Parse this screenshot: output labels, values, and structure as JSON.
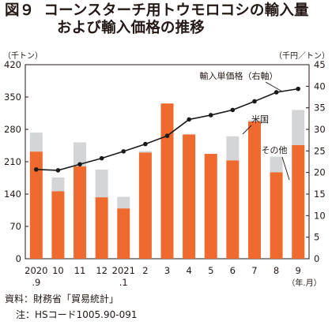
{
  "figure": {
    "number": "図９",
    "title_line1": "コーンスターチ用トウモロコシの輸入量",
    "title_line2": "および輸入価格の推移"
  },
  "chart_data": {
    "type": "bar",
    "stacked": true,
    "categories": [
      "2020\n.9",
      "10",
      "11",
      "12",
      "2021\n.1",
      "2",
      "3",
      "4",
      "5",
      "6",
      "7",
      "8",
      "9"
    ],
    "x_unit_label": "（年.月）",
    "left_axis": {
      "unit": "（千トン）",
      "ylim": [
        0,
        420
      ],
      "ticks": [
        0,
        70,
        140,
        210,
        280,
        350,
        420
      ]
    },
    "right_axis": {
      "unit": "（千円／トン）",
      "ylim": [
        0,
        45
      ],
      "ticks": [
        0,
        5,
        10,
        15,
        20,
        25,
        30,
        35,
        40,
        45
      ]
    },
    "series": [
      {
        "name": "米国",
        "axis": "left",
        "kind": "bar",
        "color": "#ef6a2f",
        "values": [
          232,
          146,
          200,
          133,
          109,
          230,
          336,
          269,
          227,
          213,
          297,
          187,
          246
        ]
      },
      {
        "name": "その他",
        "axis": "left",
        "kind": "bar",
        "color": "#d4d5d6",
        "values": [
          41,
          30,
          52,
          60,
          25,
          3,
          0,
          0,
          0,
          52,
          3,
          34,
          76
        ]
      },
      {
        "name": "輸入単価格（右軸）",
        "axis": "right",
        "kind": "line",
        "color": "#1a1a1a",
        "values": [
          20.7,
          20.5,
          21.9,
          23.3,
          24.9,
          26.6,
          28.5,
          32.3,
          33.3,
          34.5,
          36.5,
          38.6,
          39.4
        ]
      }
    ],
    "annotations": [
      "輸入単価格（右軸）",
      "米国",
      "その他"
    ],
    "grid": false
  },
  "notes": {
    "source": "資料：財務省「貿易統計」",
    "note": "注：HSコード1005.90-091"
  }
}
